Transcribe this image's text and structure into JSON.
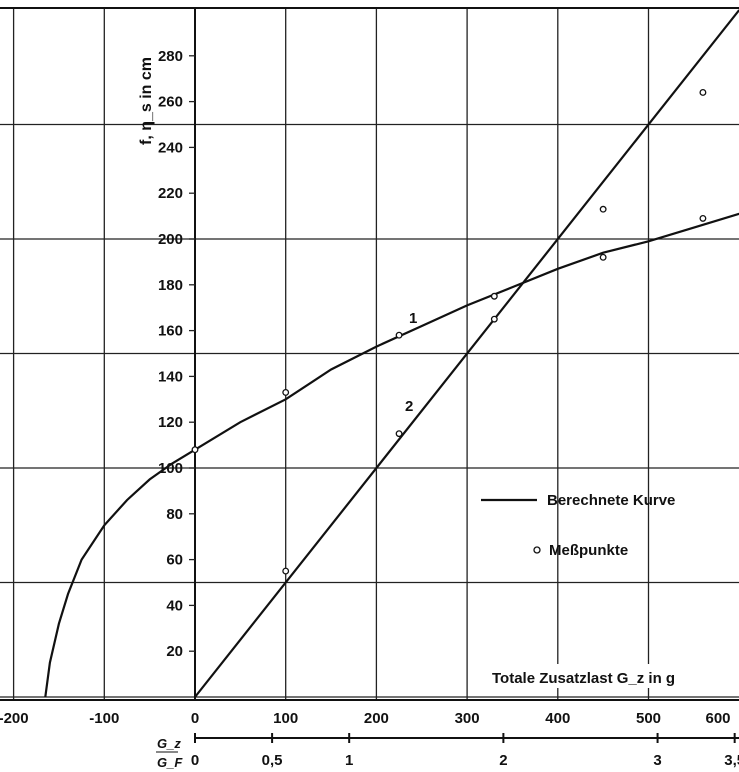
{
  "chart_data": {
    "type": "line",
    "title": "",
    "ylabel": "f, η_s in cm",
    "xlabel": "Totale Zusatzlast G_z in g",
    "xlim": [
      -200,
      600
    ],
    "ylim": [
      0,
      290
    ],
    "x_ticks": [
      -200,
      -100,
      0,
      100,
      200,
      300,
      400,
      500,
      600
    ],
    "y_ticks": [
      20,
      40,
      60,
      80,
      100,
      120,
      140,
      160,
      180,
      200,
      220,
      240,
      260,
      280
    ],
    "secondary_axis": {
      "label_num": "G_z",
      "label_den": "G_F",
      "ticks": [
        {
          "label": "0",
          "x": 0
        },
        {
          "label": "0,5",
          "x": 85
        },
        {
          "label": "1",
          "x": 170
        },
        {
          "label": "2",
          "x": 340
        },
        {
          "label": "3",
          "x": 510
        },
        {
          "label": "3,5",
          "x": 595
        }
      ]
    },
    "grid": true,
    "series": [
      {
        "name": "1",
        "curve_x": [
          -165,
          -160,
          -150,
          -140,
          -125,
          -100,
          -75,
          -50,
          -25,
          0,
          50,
          100,
          150,
          200,
          250,
          300,
          350,
          400,
          450,
          500,
          550,
          600
        ],
        "curve_y": [
          0,
          15,
          32,
          45,
          60,
          75,
          86,
          95,
          102,
          108,
          120,
          130,
          143,
          153,
          162,
          171,
          179,
          187,
          194,
          199,
          205,
          211
        ],
        "points_x": [
          0,
          100,
          225,
          330,
          450,
          560
        ],
        "points_y": [
          108,
          133,
          158,
          175,
          192,
          209
        ]
      },
      {
        "name": "2",
        "curve_x": [
          0,
          600
        ],
        "curve_y": [
          0,
          300
        ],
        "points_x": [
          100,
          225,
          330,
          450,
          560
        ],
        "points_y": [
          55,
          115,
          165,
          213,
          264
        ]
      }
    ],
    "legend": {
      "position": "right",
      "line_label": "Berechnete Kurve",
      "marker_label": "Meßpunkte"
    }
  }
}
